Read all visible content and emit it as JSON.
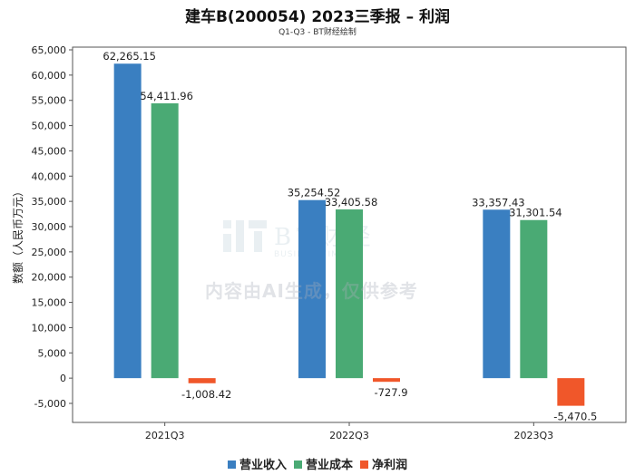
{
  "title": "建车B(200054) 2023三季报 – 利润",
  "subtitle": "Q1-Q3 - BT财经绘制",
  "watermark_text": "内容由AI生成，仅供参考",
  "chart_data": {
    "type": "bar",
    "categories": [
      "2021Q3",
      "2022Q3",
      "2023Q3"
    ],
    "ylabel": "数额（人民币万元）",
    "ylim": [
      -5000,
      65000
    ],
    "yticks": [
      -5000,
      0,
      5000,
      10000,
      15000,
      20000,
      25000,
      30000,
      35000,
      40000,
      45000,
      50000,
      55000,
      60000,
      65000
    ],
    "ytick_labels": [
      "-5,000",
      "0",
      "5,000",
      "10,000",
      "15,000",
      "20,000",
      "25,000",
      "30,000",
      "35,000",
      "40,000",
      "45,000",
      "50,000",
      "55,000",
      "60,000",
      "65,000"
    ],
    "legend_position": "bottom",
    "grid": false,
    "series": [
      {
        "name": "营业收入",
        "color": "#3a7fc1",
        "values": [
          62265.15,
          35254.52,
          33357.43
        ],
        "labels": [
          "62,265.15",
          "35,254.52",
          "33,357.43"
        ]
      },
      {
        "name": "营业成本",
        "color": "#4aaa74",
        "values": [
          54411.96,
          33405.58,
          31301.54
        ],
        "labels": [
          "54,411.96",
          "33,405.58",
          "31,301.54"
        ]
      },
      {
        "name": "净利润",
        "color": "#f0572a",
        "values": [
          -1008.42,
          -727.9,
          -5470.5
        ],
        "labels": [
          "-1,008.42",
          "-727.9",
          "-5,470.5"
        ]
      }
    ]
  }
}
